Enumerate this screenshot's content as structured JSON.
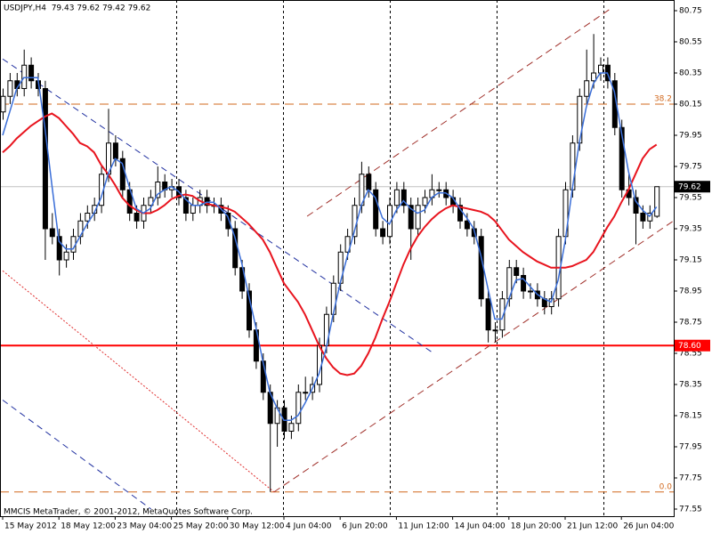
{
  "chart_data": {
    "type": "candlestick",
    "title": "USDJPY,H4  79.43 79.62 79.42 79.62",
    "footer": "MMCIS MetaTrader, © 2001-2012, MetaQuotes Software Corp.",
    "categories": [
      "15 May 2012",
      null,
      null,
      null,
      null,
      null,
      null,
      null,
      "18 May 12:00",
      null,
      null,
      null,
      null,
      null,
      null,
      null,
      "23 May 04:00",
      null,
      null,
      null,
      null,
      null,
      null,
      null,
      "25 May 20:00",
      null,
      null,
      null,
      null,
      null,
      null,
      null,
      "30 May 12:00",
      null,
      null,
      null,
      null,
      null,
      null,
      null,
      "4 Jun 04:00",
      null,
      null,
      null,
      null,
      null,
      null,
      null,
      "6 Jun 20:00",
      null,
      null,
      null,
      null,
      null,
      null,
      null,
      "11 Jun 12:00",
      null,
      null,
      null,
      null,
      null,
      null,
      null,
      "14 Jun 04:00",
      null,
      null,
      null,
      null,
      null,
      null,
      null,
      "18 Jun 20:00",
      null,
      null,
      null,
      null,
      null,
      null,
      null,
      "21 Jun 12:00",
      null,
      null,
      null,
      null,
      null,
      null,
      null,
      "26 Jun 04:00",
      null,
      null,
      null,
      null,
      null
    ],
    "ohlc": [
      [
        80.1,
        80.25,
        80.05,
        80.2
      ],
      [
        80.2,
        80.35,
        80.15,
        80.3
      ],
      [
        80.3,
        80.35,
        80.2,
        80.25
      ],
      [
        80.25,
        80.5,
        80.2,
        80.4
      ],
      [
        80.4,
        80.45,
        80.25,
        80.3
      ],
      [
        80.3,
        80.35,
        80.2,
        80.25
      ],
      [
        80.25,
        80.3,
        79.15,
        79.35
      ],
      [
        79.35,
        79.45,
        79.25,
        79.3
      ],
      [
        79.3,
        79.35,
        79.05,
        79.15
      ],
      [
        79.15,
        79.25,
        79.1,
        79.2
      ],
      [
        79.2,
        79.35,
        79.15,
        79.3
      ],
      [
        79.3,
        79.45,
        79.25,
        79.4
      ],
      [
        79.4,
        79.5,
        79.35,
        79.45
      ],
      [
        79.45,
        79.55,
        79.4,
        79.5
      ],
      [
        79.5,
        79.75,
        79.45,
        79.7
      ],
      [
        79.7,
        80.12,
        79.65,
        79.9
      ],
      [
        79.9,
        79.95,
        79.75,
        79.8
      ],
      [
        79.8,
        79.85,
        79.55,
        79.6
      ],
      [
        79.6,
        79.65,
        79.4,
        79.45
      ],
      [
        79.45,
        79.5,
        79.35,
        79.4
      ],
      [
        79.4,
        79.55,
        79.35,
        79.5
      ],
      [
        79.5,
        79.6,
        79.45,
        79.55
      ],
      [
        79.55,
        79.75,
        79.5,
        79.65
      ],
      [
        79.65,
        79.7,
        79.55,
        79.6
      ],
      [
        79.6,
        79.67,
        79.55,
        79.62
      ],
      [
        79.62,
        79.67,
        79.5,
        79.55
      ],
      [
        79.55,
        79.6,
        79.4,
        79.45
      ],
      [
        79.45,
        79.55,
        79.4,
        79.5
      ],
      [
        79.5,
        79.6,
        79.45,
        79.55
      ],
      [
        79.55,
        79.6,
        79.45,
        79.5
      ],
      [
        79.5,
        79.55,
        79.45,
        79.5
      ],
      [
        79.5,
        79.55,
        79.4,
        79.45
      ],
      [
        79.45,
        79.5,
        79.3,
        79.35
      ],
      [
        79.35,
        79.4,
        79.05,
        79.1
      ],
      [
        79.1,
        79.15,
        78.9,
        78.95
      ],
      [
        78.95,
        79.0,
        78.65,
        78.7
      ],
      [
        78.7,
        78.75,
        78.45,
        78.5
      ],
      [
        78.5,
        78.55,
        78.25,
        78.3
      ],
      [
        78.3,
        78.35,
        77.66,
        78.1
      ],
      [
        78.1,
        78.25,
        77.95,
        78.2
      ],
      [
        78.2,
        78.25,
        78.0,
        78.05
      ],
      [
        78.05,
        78.15,
        78.0,
        78.1
      ],
      [
        78.1,
        78.35,
        78.05,
        78.3
      ],
      [
        78.3,
        78.4,
        78.25,
        78.3
      ],
      [
        78.3,
        78.4,
        78.25,
        78.35
      ],
      [
        78.35,
        78.65,
        78.3,
        78.6
      ],
      [
        78.6,
        78.85,
        78.55,
        78.8
      ],
      [
        78.8,
        79.05,
        78.75,
        79.0
      ],
      [
        79.0,
        79.25,
        78.95,
        79.2
      ],
      [
        79.2,
        79.35,
        79.15,
        79.3
      ],
      [
        79.3,
        79.55,
        79.25,
        79.5
      ],
      [
        79.5,
        79.78,
        79.45,
        79.7
      ],
      [
        79.7,
        79.75,
        79.55,
        79.6
      ],
      [
        79.6,
        79.65,
        79.3,
        79.35
      ],
      [
        79.35,
        79.4,
        79.25,
        79.3
      ],
      [
        79.3,
        79.55,
        79.25,
        79.5
      ],
      [
        79.5,
        79.65,
        79.45,
        79.6
      ],
      [
        79.6,
        79.65,
        79.45,
        79.5
      ],
      [
        79.5,
        79.55,
        79.15,
        79.35
      ],
      [
        79.35,
        79.55,
        79.3,
        79.5
      ],
      [
        79.5,
        79.6,
        79.45,
        79.55
      ],
      [
        79.55,
        79.7,
        79.5,
        79.6
      ],
      [
        79.6,
        79.65,
        79.55,
        79.6
      ],
      [
        79.6,
        79.65,
        79.5,
        79.55
      ],
      [
        79.55,
        79.6,
        79.45,
        79.5
      ],
      [
        79.5,
        79.55,
        79.35,
        79.4
      ],
      [
        79.4,
        79.45,
        79.3,
        79.35
      ],
      [
        79.35,
        79.4,
        79.25,
        79.3
      ],
      [
        79.3,
        79.35,
        78.85,
        78.9
      ],
      [
        78.9,
        78.95,
        78.62,
        78.7
      ],
      [
        78.7,
        78.75,
        78.62,
        78.7
      ],
      [
        78.7,
        78.95,
        78.65,
        78.9
      ],
      [
        78.9,
        79.15,
        78.85,
        79.1
      ],
      [
        79.1,
        79.15,
        79.0,
        79.05
      ],
      [
        79.05,
        79.1,
        78.9,
        78.95
      ],
      [
        78.95,
        79.0,
        78.9,
        78.95
      ],
      [
        78.95,
        79.0,
        78.85,
        78.9
      ],
      [
        78.9,
        78.95,
        78.8,
        78.85
      ],
      [
        78.85,
        78.95,
        78.8,
        78.9
      ],
      [
        78.9,
        79.35,
        78.85,
        79.3
      ],
      [
        79.3,
        79.65,
        79.25,
        79.6
      ],
      [
        79.6,
        79.95,
        79.55,
        79.9
      ],
      [
        79.9,
        80.25,
        79.85,
        80.2
      ],
      [
        80.2,
        80.5,
        80.15,
        80.3
      ],
      [
        80.3,
        80.6,
        80.25,
        80.35
      ],
      [
        80.35,
        80.45,
        80.3,
        80.4
      ],
      [
        80.4,
        80.45,
        80.25,
        80.3
      ],
      [
        80.3,
        80.35,
        79.95,
        80.0
      ],
      [
        80.0,
        80.05,
        79.55,
        79.6
      ],
      [
        79.6,
        79.7,
        79.5,
        79.55
      ],
      [
        79.55,
        79.6,
        79.25,
        79.45
      ],
      [
        79.45,
        79.5,
        79.35,
        79.4
      ],
      [
        79.4,
        79.5,
        79.35,
        79.45
      ],
      [
        79.43,
        79.62,
        79.42,
        79.62
      ]
    ],
    "up_color": "#ffffff",
    "down_color": "#000000",
    "ma_series": [
      {
        "color": "#e8141e",
        "width": 2,
        "values": [
          79.84,
          79.88,
          79.93,
          79.97,
          80.01,
          80.04,
          80.07,
          80.09,
          80.06,
          80.01,
          79.96,
          79.9,
          79.88,
          79.84,
          79.76,
          79.7,
          79.63,
          79.55,
          79.5,
          79.47,
          79.45,
          79.45,
          79.47,
          79.5,
          79.54,
          79.56,
          79.57,
          79.56,
          79.53,
          79.51,
          79.5,
          79.49,
          79.48,
          79.46,
          79.42,
          79.38,
          79.33,
          79.28,
          79.2,
          79.1,
          79.0,
          78.94,
          78.88,
          78.8,
          78.7,
          78.6,
          78.52,
          78.46,
          78.42,
          78.41,
          78.42,
          78.47,
          78.55,
          78.65,
          78.77,
          78.88,
          79.0,
          79.12,
          79.22,
          79.3,
          79.36,
          79.41,
          79.45,
          79.48,
          79.5,
          79.49,
          79.48,
          79.47,
          79.46,
          79.44,
          79.4,
          79.34,
          79.28,
          79.24,
          79.2,
          79.17,
          79.14,
          79.12,
          79.1,
          79.1,
          79.1,
          79.11,
          79.13,
          79.15,
          79.2,
          79.28,
          79.36,
          79.43,
          79.52,
          79.6,
          79.7,
          79.8,
          79.86,
          79.89
        ]
      },
      {
        "color": "#3a6ed8",
        "width": 1.5,
        "values": [
          79.95,
          80.1,
          80.25,
          80.32,
          80.32,
          80.32,
          80.0,
          79.63,
          79.27,
          79.22,
          79.22,
          79.3,
          79.38,
          79.45,
          79.55,
          79.7,
          79.8,
          79.77,
          79.62,
          79.48,
          79.45,
          79.48,
          79.57,
          79.6,
          79.62,
          79.59,
          79.54,
          79.5,
          79.5,
          79.52,
          79.52,
          79.48,
          79.43,
          79.3,
          79.13,
          78.92,
          78.72,
          78.5,
          78.3,
          78.2,
          78.12,
          78.12,
          78.15,
          78.23,
          78.32,
          78.42,
          78.58,
          78.8,
          79.0,
          79.17,
          79.33,
          79.5,
          79.6,
          79.55,
          79.42,
          79.38,
          79.47,
          79.53,
          79.48,
          79.45,
          79.47,
          79.55,
          79.58,
          79.58,
          79.55,
          79.48,
          79.42,
          79.35,
          79.18,
          78.97,
          78.77,
          78.77,
          78.9,
          79.02,
          79.03,
          78.98,
          78.93,
          78.9,
          78.88,
          79.02,
          79.27,
          79.6,
          79.9,
          80.13,
          80.28,
          80.35,
          80.35,
          80.23,
          79.97,
          79.72,
          79.53,
          79.47,
          79.43,
          79.49
        ]
      }
    ],
    "trendlines": [
      {
        "x": [
          0,
          61.3
        ],
        "y": [
          80.44,
          78.55
        ],
        "color": "#2030a0",
        "dash": "7 5"
      },
      {
        "x": [
          0,
          21.1
        ],
        "y": [
          78.25,
          77.55
        ],
        "color": "#2030a0",
        "dash": "7 5"
      },
      {
        "x": [
          0,
          38.6
        ],
        "y": [
          79.08,
          77.66
        ],
        "color": "#e03030",
        "dash": "2 2"
      },
      {
        "x": [
          38.6,
          95.4
        ],
        "y": [
          77.66,
          79.4
        ],
        "color": "#a0302a",
        "dash": "8 5"
      },
      {
        "x": [
          43.3,
          86.7
        ],
        "y": [
          79.43,
          80.77
        ],
        "color": "#a0302a",
        "dash": "8 5"
      }
    ],
    "fib_levels": [
      {
        "level": 38.2,
        "price": 80.15
      },
      {
        "level": {
          "value": 0,
          "label": "0.0"
        },
        "price": 77.66
      }
    ],
    "fib_color": "#d2691e",
    "level_line": {
      "value": 78.6,
      "label": "78.60",
      "color": "#ff0000"
    },
    "current_price": 79.62,
    "ylim": [
      77.55,
      80.75
    ],
    "yticks": [
      80.75,
      80.55,
      80.35,
      80.15,
      79.95,
      79.75,
      79.55,
      79.35,
      79.15,
      78.95,
      78.75,
      78.55,
      78.35,
      78.15,
      77.95,
      77.75,
      77.55
    ]
  }
}
